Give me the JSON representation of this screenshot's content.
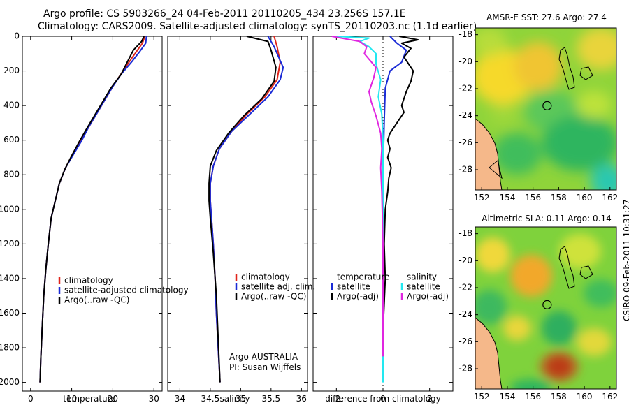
{
  "header": {
    "line1": "Argo profile: CS 5903266_24 04-Feb-2011 20110205_434 23.256S 157.1E",
    "line2": "Climatology: CARS2009. Satellite-adjusted climatology: synTS_20110203.nc (1.1d earlier)"
  },
  "colors": {
    "red": "#e0241b",
    "blue": "#1a2bd6",
    "black": "#000000",
    "cyan": "#22e8f0",
    "magenta": "#e026e0",
    "land": "#f5b88a"
  },
  "chart_data": [
    {
      "type": "line",
      "name": "temperature",
      "xlabel": "temperature",
      "xlim": [
        -2,
        32
      ],
      "ylim": [
        2050,
        0
      ],
      "xticks": [
        "0",
        "10",
        "20",
        "30"
      ],
      "yticks": [
        "0",
        "200",
        "400",
        "600",
        "800",
        "1000",
        "1200",
        "1400",
        "1600",
        "1800",
        "2000"
      ],
      "legend": [
        "climatology",
        "satellite-adjusted climatology",
        "Argo(..raw -QC)"
      ],
      "series": [
        {
          "name": "climatology",
          "color": "red",
          "points": [
            [
              27.8,
              0
            ],
            [
              27.2,
              40
            ],
            [
              26,
              80
            ],
            [
              24.5,
              130
            ],
            [
              22.5,
              200
            ],
            [
              20.5,
              270
            ],
            [
              18.5,
              350
            ],
            [
              16.5,
              430
            ],
            [
              14.5,
              510
            ],
            [
              12.5,
              590
            ],
            [
              10.5,
              670
            ],
            [
              8.5,
              760
            ],
            [
              7,
              850
            ],
            [
              6,
              950
            ],
            [
              5,
              1050
            ],
            [
              4.3,
              1200
            ],
            [
              3.7,
              1350
            ],
            [
              3.2,
              1500
            ],
            [
              2.8,
              1700
            ],
            [
              2.5,
              1850
            ],
            [
              2.3,
              2000
            ]
          ]
        },
        {
          "name": "satellite-adjusted climatology",
          "color": "blue",
          "points": [
            [
              28.2,
              0
            ],
            [
              28,
              40
            ],
            [
              26.5,
              90
            ],
            [
              24.5,
              150
            ],
            [
              22,
              220
            ],
            [
              20,
              290
            ],
            [
              18,
              370
            ],
            [
              16,
              450
            ],
            [
              14,
              530
            ],
            [
              12.5,
              600
            ],
            [
              10.5,
              680
            ],
            [
              8.5,
              760
            ],
            [
              7,
              850
            ],
            [
              6,
              950
            ],
            [
              5,
              1050
            ],
            [
              4.3,
              1200
            ],
            [
              3.7,
              1350
            ],
            [
              3.2,
              1500
            ],
            [
              2.8,
              1700
            ],
            [
              2.5,
              1850
            ],
            [
              2.3,
              2000
            ]
          ]
        },
        {
          "name": "Argo(..raw -QC)",
          "color": "black",
          "points": [
            [
              27.6,
              0
            ],
            [
              27,
              30
            ],
            [
              25,
              80
            ],
            [
              23.5,
              150
            ],
            [
              22,
              220
            ],
            [
              19.5,
              300
            ],
            [
              17.5,
              380
            ],
            [
              15.5,
              460
            ],
            [
              13.5,
              540
            ],
            [
              11.8,
              610
            ],
            [
              10,
              690
            ],
            [
              8.3,
              770
            ],
            [
              7,
              850
            ],
            [
              6,
              950
            ],
            [
              5,
              1050
            ],
            [
              4.3,
              1200
            ],
            [
              3.7,
              1350
            ],
            [
              3.2,
              1500
            ],
            [
              2.8,
              1700
            ],
            [
              2.5,
              1850
            ],
            [
              2.3,
              2000
            ]
          ]
        }
      ]
    },
    {
      "type": "line",
      "name": "salinity",
      "xlabel": "salinity",
      "xlim": [
        33.8,
        36.1
      ],
      "ylim": [
        2050,
        0
      ],
      "xticks": [
        "34",
        "34.5",
        "35",
        "35.5",
        "36"
      ],
      "legend": [
        "climatology",
        "satellite adj. clim.",
        "Argo(..raw -QC)"
      ],
      "annotation": [
        "Argo AUSTRALIA",
        "PI: Susan Wijffels"
      ],
      "series": [
        {
          "name": "climatology",
          "color": "red",
          "points": [
            [
              35.55,
              0
            ],
            [
              35.6,
              60
            ],
            [
              35.65,
              150
            ],
            [
              35.6,
              250
            ],
            [
              35.4,
              350
            ],
            [
              35.1,
              450
            ],
            [
              34.85,
              550
            ],
            [
              34.65,
              650
            ],
            [
              34.55,
              750
            ],
            [
              34.5,
              850
            ],
            [
              34.5,
              950
            ],
            [
              34.52,
              1050
            ],
            [
              34.55,
              1200
            ],
            [
              34.58,
              1400
            ],
            [
              34.6,
              1600
            ],
            [
              34.63,
              1800
            ],
            [
              34.66,
              2000
            ]
          ]
        },
        {
          "name": "satellite adj. clim.",
          "color": "blue",
          "points": [
            [
              35.45,
              0
            ],
            [
              35.55,
              60
            ],
            [
              35.7,
              180
            ],
            [
              35.65,
              250
            ],
            [
              35.45,
              350
            ],
            [
              35.15,
              450
            ],
            [
              34.85,
              550
            ],
            [
              34.65,
              650
            ],
            [
              34.55,
              750
            ],
            [
              34.5,
              850
            ],
            [
              34.5,
              950
            ],
            [
              34.52,
              1050
            ],
            [
              34.55,
              1200
            ],
            [
              34.58,
              1400
            ],
            [
              34.6,
              1600
            ],
            [
              34.63,
              1800
            ],
            [
              34.66,
              2000
            ]
          ]
        },
        {
          "name": "Argo(..raw -QC)",
          "color": "black",
          "points": [
            [
              35.1,
              0
            ],
            [
              35.45,
              30
            ],
            [
              35.5,
              80
            ],
            [
              35.58,
              180
            ],
            [
              35.55,
              260
            ],
            [
              35.35,
              360
            ],
            [
              35.05,
              460
            ],
            [
              34.8,
              560
            ],
            [
              34.6,
              660
            ],
            [
              34.5,
              750
            ],
            [
              34.48,
              850
            ],
            [
              34.48,
              950
            ],
            [
              34.5,
              1050
            ],
            [
              34.55,
              1250
            ],
            [
              34.6,
              1500
            ],
            [
              34.63,
              1750
            ],
            [
              34.66,
              2000
            ]
          ]
        }
      ]
    },
    {
      "type": "line",
      "name": "difference",
      "xlabel": "difference from climatology",
      "xlim": [
        -3,
        3
      ],
      "ylim": [
        2050,
        0
      ],
      "xticks": [
        "-2",
        "0",
        "2"
      ],
      "legend_left_title": "temperature",
      "legend_right_title": "salinity",
      "legend": [
        "satellite",
        "Argo(-adj)",
        "satellite",
        "Argo(-adj)"
      ],
      "series": [
        {
          "name": "temperature satellite",
          "color": "blue",
          "points": [
            [
              0.3,
              0
            ],
            [
              0.6,
              40
            ],
            [
              1.0,
              80
            ],
            [
              0.8,
              150
            ],
            [
              0.3,
              200
            ],
            [
              0.1,
              300
            ],
            [
              0.05,
              500
            ],
            [
              0,
              800
            ],
            [
              0,
              1500
            ]
          ]
        },
        {
          "name": "temperature Argo(-adj)",
          "color": "black",
          "points": [
            [
              0.7,
              0
            ],
            [
              1.5,
              20
            ],
            [
              0.8,
              40
            ],
            [
              1.2,
              70
            ],
            [
              0.9,
              120
            ],
            [
              1.3,
              200
            ],
            [
              1.2,
              260
            ],
            [
              1.0,
              320
            ],
            [
              0.8,
              400
            ],
            [
              0.9,
              440
            ],
            [
              0.7,
              480
            ],
            [
              0.5,
              520
            ],
            [
              0.3,
              560
            ],
            [
              0.2,
              600
            ],
            [
              0.3,
              650
            ],
            [
              0.2,
              700
            ],
            [
              0.35,
              760
            ],
            [
              0.25,
              820
            ],
            [
              0.2,
              900
            ],
            [
              0.1,
              1000
            ],
            [
              0.05,
              1200
            ],
            [
              0.1,
              1400
            ],
            [
              0,
              1700
            ],
            [
              0,
              1800
            ]
          ]
        },
        {
          "name": "salinity satellite",
          "color": "cyan",
          "points": [
            [
              -2.1,
              0
            ],
            [
              -0.6,
              10
            ],
            [
              -1.0,
              30
            ],
            [
              -0.6,
              60
            ],
            [
              -0.3,
              100
            ],
            [
              -0.3,
              160
            ],
            [
              -0.1,
              250
            ],
            [
              -0.2,
              350
            ],
            [
              -0.05,
              450
            ],
            [
              0,
              600
            ],
            [
              0,
              2000
            ]
          ]
        },
        {
          "name": "salinity Argo(-adj)",
          "color": "magenta",
          "points": [
            [
              -2.2,
              0
            ],
            [
              -1.8,
              10
            ],
            [
              -1.0,
              30
            ],
            [
              -0.7,
              60
            ],
            [
              -0.8,
              100
            ],
            [
              -0.3,
              180
            ],
            [
              -0.4,
              240
            ],
            [
              -0.6,
              320
            ],
            [
              -0.5,
              380
            ],
            [
              -0.3,
              460
            ],
            [
              -0.1,
              560
            ],
            [
              -0.05,
              650
            ],
            [
              -0.1,
              760
            ],
            [
              -0.05,
              900
            ],
            [
              0,
              1200
            ],
            [
              0,
              1850
            ]
          ]
        }
      ]
    },
    {
      "type": "heatmap",
      "name": "sst-map",
      "title": "AMSR-E SST: 27.6 Argo: 27.4",
      "xticks": [
        "152",
        "154",
        "156",
        "158",
        "160",
        "162"
      ],
      "yticks": [
        "-18",
        "-20",
        "-22",
        "-24",
        "-26",
        "-28"
      ],
      "xlim": [
        151.5,
        162.5
      ],
      "ylim": [
        -29.5,
        -17.5
      ],
      "argo_position": [
        157.1,
        -23.26
      ]
    },
    {
      "type": "heatmap",
      "name": "sla-map",
      "title": "Altimetric SLA: 0.11 Argo: 0.14",
      "xticks": [
        "152",
        "154",
        "156",
        "158",
        "160",
        "162"
      ],
      "yticks": [
        "-18",
        "-20",
        "-22",
        "-24",
        "-26",
        "-28"
      ],
      "xlim": [
        151.5,
        162.5
      ],
      "ylim": [
        -29.5,
        -17.5
      ],
      "argo_position": [
        157.1,
        -23.26
      ]
    }
  ],
  "footer": {
    "side_text": "CSIRO 09-Feb-2011 10:31:27"
  }
}
